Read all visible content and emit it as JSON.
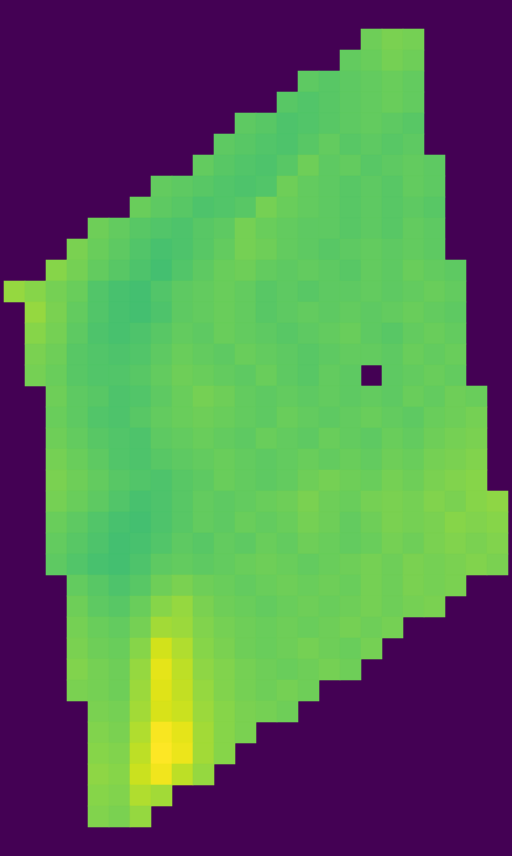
{
  "chart_data": {
    "type": "heatmap",
    "tick_labels": false,
    "color_range": [
      0,
      100
    ],
    "cells": [
      [
        null,
        null,
        null,
        null,
        null,
        null,
        null,
        null,
        null,
        null,
        null,
        null,
        null,
        null,
        null,
        null,
        null,
        null,
        null,
        null,
        null,
        null,
        null,
        null
      ],
      [
        null,
        null,
        null,
        null,
        null,
        null,
        null,
        null,
        null,
        null,
        null,
        null,
        null,
        null,
        null,
        null,
        null,
        78,
        80,
        79,
        null,
        null,
        null,
        null
      ],
      [
        null,
        null,
        null,
        null,
        null,
        null,
        null,
        null,
        null,
        null,
        null,
        null,
        null,
        null,
        null,
        null,
        76,
        77,
        79,
        78,
        null,
        null,
        null,
        null
      ],
      [
        null,
        null,
        null,
        null,
        null,
        null,
        null,
        null,
        null,
        null,
        null,
        null,
        null,
        null,
        75,
        74,
        75,
        76,
        77,
        76,
        null,
        null,
        null,
        null
      ],
      [
        null,
        null,
        null,
        null,
        null,
        null,
        null,
        null,
        null,
        null,
        null,
        null,
        null,
        74,
        73,
        74,
        75,
        76,
        77,
        76,
        null,
        null,
        null,
        null
      ],
      [
        null,
        null,
        null,
        null,
        null,
        null,
        null,
        null,
        null,
        null,
        null,
        75,
        74,
        72,
        73,
        74,
        75,
        76,
        75,
        74,
        null,
        null,
        null,
        null
      ],
      [
        null,
        null,
        null,
        null,
        null,
        null,
        null,
        null,
        null,
        null,
        75,
        74,
        73,
        72,
        74,
        76,
        74,
        75,
        74,
        75,
        null,
        null,
        null,
        null
      ],
      [
        null,
        null,
        null,
        null,
        null,
        null,
        null,
        null,
        null,
        76,
        74,
        73,
        72,
        74,
        78,
        75,
        76,
        74,
        75,
        76,
        75,
        null,
        null,
        null
      ],
      [
        null,
        null,
        null,
        null,
        null,
        null,
        null,
        76,
        75,
        74,
        73,
        72,
        73,
        78,
        76,
        75,
        74,
        75,
        74,
        76,
        75,
        null,
        null,
        null
      ],
      [
        null,
        null,
        null,
        null,
        null,
        null,
        77,
        75,
        74,
        72,
        73,
        74,
        79,
        77,
        76,
        75,
        74,
        75,
        74,
        75,
        74,
        null,
        null,
        null
      ],
      [
        null,
        null,
        null,
        null,
        78,
        76,
        74,
        73,
        72,
        74,
        75,
        79,
        77,
        76,
        75,
        75,
        74,
        75,
        74,
        76,
        75,
        null,
        null,
        null
      ],
      [
        null,
        null,
        null,
        80,
        77,
        75,
        73,
        71,
        72,
        74,
        76,
        79,
        78,
        76,
        75,
        74,
        75,
        76,
        75,
        76,
        75,
        null,
        null,
        null
      ],
      [
        null,
        null,
        82,
        79,
        76,
        74,
        72,
        70,
        73,
        75,
        77,
        78,
        76,
        75,
        76,
        75,
        74,
        76,
        75,
        77,
        76,
        75,
        null,
        null
      ],
      [
        84,
        82,
        79,
        77,
        73,
        71,
        70,
        73,
        75,
        76,
        77,
        76,
        74,
        75,
        74,
        75,
        75,
        76,
        75,
        76,
        77,
        76,
        null,
        null
      ],
      [
        null,
        84,
        80,
        76,
        73,
        71,
        70,
        72,
        75,
        76,
        77,
        76,
        74,
        75,
        76,
        75,
        76,
        75,
        76,
        77,
        76,
        75,
        null,
        null
      ],
      [
        null,
        82,
        79,
        75,
        72,
        71,
        72,
        74,
        76,
        75,
        77,
        76,
        75,
        74,
        75,
        76,
        77,
        75,
        74,
        76,
        77,
        76,
        null,
        null
      ],
      [
        null,
        80,
        78,
        74,
        73,
        72,
        73,
        75,
        77,
        76,
        75,
        77,
        76,
        75,
        74,
        75,
        76,
        76,
        75,
        77,
        76,
        77,
        null,
        null
      ],
      [
        null,
        79,
        77,
        74,
        73,
        73,
        74,
        76,
        78,
        77,
        76,
        75,
        77,
        75,
        74,
        76,
        75,
        null,
        75,
        76,
        77,
        76,
        null,
        null
      ],
      [
        null,
        null,
        78,
        75,
        74,
        72,
        73,
        75,
        77,
        79,
        78,
        76,
        75,
        76,
        75,
        76,
        75,
        76,
        75,
        77,
        76,
        78,
        77,
        null
      ],
      [
        null,
        null,
        77,
        75,
        73,
        72,
        74,
        76,
        77,
        78,
        77,
        76,
        75,
        77,
        76,
        75,
        76,
        77,
        76,
        75,
        77,
        78,
        79,
        null
      ],
      [
        null,
        null,
        78,
        76,
        74,
        73,
        72,
        75,
        76,
        77,
        76,
        75,
        77,
        76,
        75,
        77,
        76,
        75,
        77,
        76,
        78,
        79,
        80,
        null
      ],
      [
        null,
        null,
        79,
        77,
        75,
        73,
        72,
        74,
        75,
        76,
        77,
        76,
        75,
        76,
        77,
        76,
        77,
        76,
        78,
        77,
        79,
        80,
        81,
        null
      ],
      [
        null,
        null,
        80,
        78,
        76,
        74,
        73,
        72,
        74,
        75,
        77,
        76,
        75,
        76,
        78,
        79,
        78,
        77,
        79,
        78,
        80,
        81,
        82,
        null
      ],
      [
        null,
        null,
        79,
        77,
        75,
        73,
        71,
        72,
        74,
        76,
        75,
        76,
        77,
        78,
        80,
        78,
        77,
        79,
        80,
        79,
        81,
        80,
        82,
        83
      ],
      [
        null,
        null,
        77,
        75,
        73,
        71,
        70,
        72,
        74,
        76,
        75,
        77,
        76,
        77,
        79,
        78,
        76,
        78,
        80,
        79,
        80,
        82,
        81,
        82
      ],
      [
        null,
        null,
        76,
        74,
        72,
        70,
        71,
        73,
        75,
        74,
        76,
        75,
        77,
        76,
        78,
        77,
        76,
        77,
        79,
        78,
        80,
        81,
        80,
        81
      ],
      [
        null,
        null,
        75,
        73,
        71,
        70,
        72,
        75,
        76,
        75,
        76,
        77,
        78,
        77,
        76,
        77,
        78,
        79,
        78,
        80,
        79,
        80,
        81,
        80
      ],
      [
        null,
        null,
        null,
        76,
        74,
        72,
        74,
        78,
        80,
        78,
        77,
        76,
        77,
        78,
        77,
        78,
        77,
        79,
        78,
        80,
        79,
        80,
        null,
        null
      ],
      [
        null,
        null,
        null,
        78,
        75,
        74,
        77,
        82,
        84,
        80,
        78,
        77,
        76,
        77,
        78,
        77,
        78,
        79,
        78,
        79,
        80,
        null,
        null,
        null
      ],
      [
        null,
        null,
        null,
        79,
        77,
        76,
        79,
        86,
        85,
        81,
        79,
        78,
        77,
        78,
        77,
        78,
        79,
        78,
        79,
        null,
        null,
        null,
        null,
        null
      ],
      [
        null,
        null,
        null,
        80,
        78,
        77,
        82,
        93,
        88,
        82,
        80,
        78,
        77,
        78,
        79,
        78,
        77,
        79,
        null,
        null,
        null,
        null,
        null,
        null
      ],
      [
        null,
        null,
        null,
        81,
        79,
        78,
        84,
        96,
        90,
        83,
        81,
        79,
        78,
        77,
        78,
        79,
        78,
        null,
        null,
        null,
        null,
        null,
        null,
        null
      ],
      [
        null,
        null,
        null,
        80,
        79,
        78,
        85,
        95,
        91,
        84,
        81,
        79,
        78,
        79,
        78,
        null,
        null,
        null,
        null,
        null,
        null,
        null,
        null,
        null
      ],
      [
        null,
        null,
        null,
        null,
        80,
        79,
        86,
        94,
        92,
        85,
        82,
        80,
        79,
        78,
        null,
        null,
        null,
        null,
        null,
        null,
        null,
        null,
        null,
        null
      ],
      [
        null,
        null,
        null,
        null,
        81,
        80,
        88,
        99,
        96,
        86,
        82,
        80,
        null,
        null,
        null,
        null,
        null,
        null,
        null,
        null,
        null,
        null,
        null,
        null
      ],
      [
        null,
        null,
        null,
        null,
        82,
        81,
        90,
        100,
        97,
        86,
        82,
        null,
        null,
        null,
        null,
        null,
        null,
        null,
        null,
        null,
        null,
        null,
        null,
        null
      ],
      [
        null,
        null,
        null,
        null,
        83,
        82,
        92,
        98,
        90,
        84,
        null,
        null,
        null,
        null,
        null,
        null,
        null,
        null,
        null,
        null,
        null,
        null,
        null,
        null
      ],
      [
        null,
        null,
        null,
        null,
        82,
        81,
        88,
        86,
        null,
        null,
        null,
        null,
        null,
        null,
        null,
        null,
        null,
        null,
        null,
        null,
        null,
        null,
        null,
        null
      ],
      [
        null,
        null,
        null,
        null,
        81,
        80,
        84,
        null,
        null,
        null,
        null,
        null,
        null,
        null,
        null,
        null,
        null,
        null,
        null,
        null,
        null,
        null,
        null,
        null
      ],
      [
        null,
        null,
        null,
        null,
        null,
        null,
        null,
        null,
        null,
        null,
        null,
        null,
        null,
        null,
        null,
        null,
        null,
        null,
        null,
        null,
        null,
        null,
        null,
        null
      ]
    ]
  }
}
